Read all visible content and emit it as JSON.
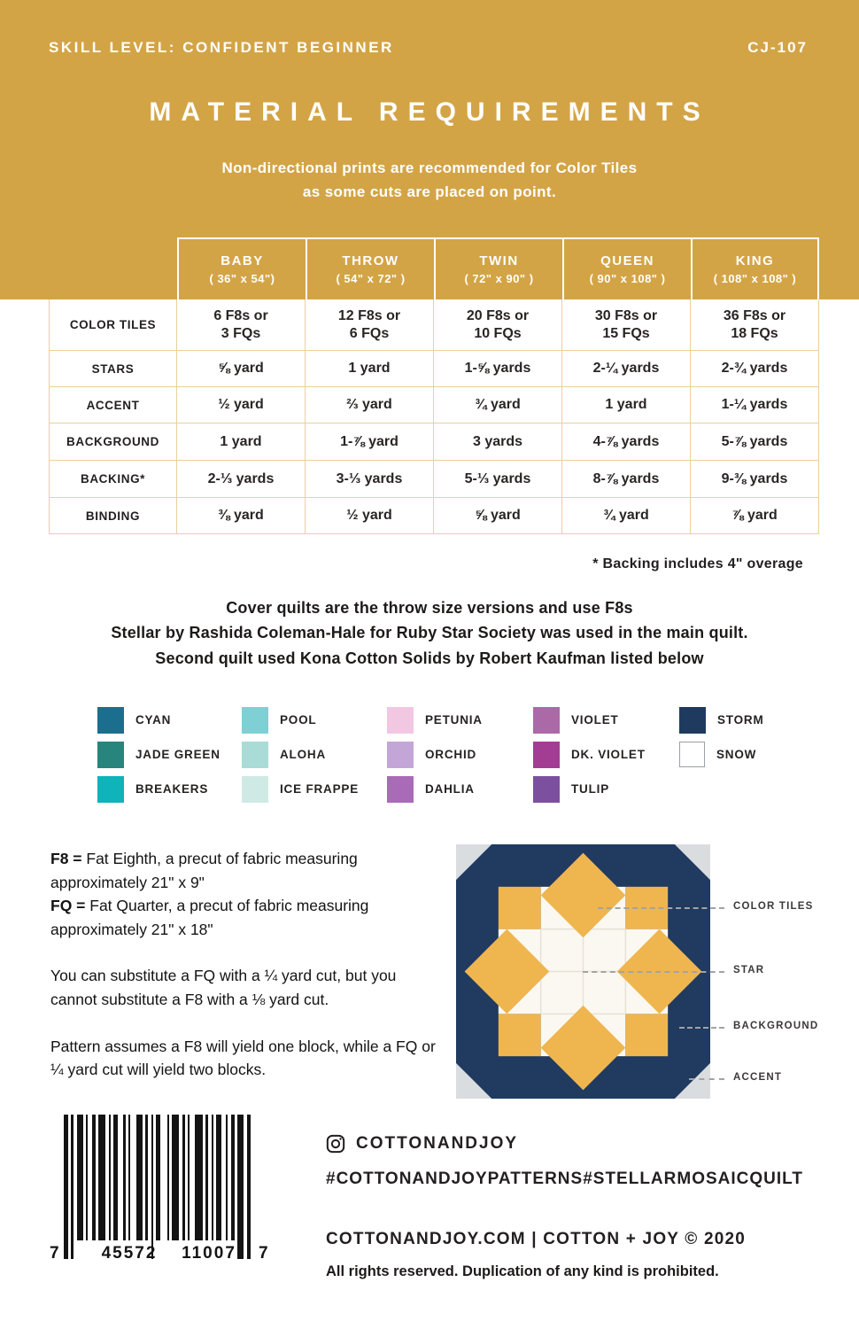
{
  "header": {
    "skill_level": "SKILL LEVEL: CONFIDENT BEGINNER",
    "pattern_number": "CJ-107",
    "title": "MATERIAL REQUIREMENTS",
    "subtitle_line1": "Non-directional prints are recommended for Color Tiles",
    "subtitle_line2": "as some cuts are placed on point.",
    "band_color": "#d3a446"
  },
  "table": {
    "columns": [
      {
        "name": "BABY",
        "size": "( 36\" x 54\")"
      },
      {
        "name": "THROW",
        "size": "( 54\" x 72\" )"
      },
      {
        "name": "TWIN",
        "size": "( 72\" x 90\" )"
      },
      {
        "name": "QUEEN",
        "size": "( 90\" x 108\" )"
      },
      {
        "name": "KING",
        "size": "( 108\" x 108\" )"
      }
    ],
    "rows": [
      {
        "label": "COLOR TILES",
        "values": [
          "6 F8s or\n3 FQs",
          "12 F8s or\n6 FQs",
          "20 F8s or\n10 FQs",
          "30 F8s or\n15 FQs",
          "36 F8s or\n18 FQs"
        ]
      },
      {
        "label": "STARS",
        "values": [
          "⅝ yard",
          "1 yard",
          "1-⅝ yards",
          "2-¼ yards",
          "2-¾ yards"
        ]
      },
      {
        "label": "ACCENT",
        "values": [
          "½ yard",
          "⅔ yard",
          "¾ yard",
          "1 yard",
          "1-¼ yards"
        ]
      },
      {
        "label": "BACKGROUND",
        "values": [
          "1 yard",
          "1-⅞ yard",
          "3 yards",
          "4-⅞ yards",
          "5-⅞ yards"
        ]
      },
      {
        "label": "BACKING*",
        "values": [
          "2-⅓ yards",
          "3-⅓ yards",
          "5-⅓ yards",
          "8-⅞ yards",
          "9-⅜ yards"
        ]
      },
      {
        "label": "BINDING",
        "values": [
          "⅜ yard",
          "½ yard",
          "⅝ yard",
          "¾ yard",
          "⅞ yard"
        ]
      }
    ],
    "footnote": "* Backing includes 4\" overage"
  },
  "intro": {
    "line1": "Cover quilts are the throw size versions and use F8s",
    "line2": "Stellar by Rashida Coleman-Hale for Ruby Star Society was used in the main quilt.",
    "line3": "Second quilt used Kona Cotton Solids by Robert Kaufman listed below"
  },
  "legend": {
    "columns": [
      [
        {
          "name": "CYAN",
          "color": "#1b6e8e"
        },
        {
          "name": "JADE GREEN",
          "color": "#27857d"
        },
        {
          "name": "BREAKERS",
          "color": "#0fb3ba"
        }
      ],
      [
        {
          "name": "POOL",
          "color": "#7ed0d4"
        },
        {
          "name": "ALOHA",
          "color": "#a9dcd6"
        },
        {
          "name": "ICE FRAPPE",
          "color": "#cfeae4"
        }
      ],
      [
        {
          "name": "PETUNIA",
          "color": "#f2c7e1"
        },
        {
          "name": "ORCHID",
          "color": "#c3a6d7"
        },
        {
          "name": "DAHLIA",
          "color": "#a96ab7"
        }
      ],
      [
        {
          "name": "VIOLET",
          "color": "#ac69a8"
        },
        {
          "name": "DK. VIOLET",
          "color": "#a23d93"
        },
        {
          "name": "TULIP",
          "color": "#7c509f"
        }
      ],
      [
        {
          "name": "STORM",
          "color": "#1e3a5f"
        },
        {
          "name": "SNOW",
          "color": "#ffffff"
        }
      ]
    ]
  },
  "notes": {
    "def1_term": "F8 =",
    "def1_rest": " Fat Eighth, a precut of fabric measuring approximately 21\" x 9\"",
    "def2_term": "FQ =",
    "def2_rest": " Fat Quarter, a precut of fabric measuring approximately 21\" x 18\"",
    "para1": "You can substitute a FQ with a ¼ yard cut, but you cannot substitute a F8 with a ⅛ yard cut.",
    "para2": "Pattern assumes a F8 will yield one block, while a FQ or ¼ yard cut will yield two blocks."
  },
  "diagram": {
    "labels": {
      "color_tiles": "COLOR TILES",
      "star": "STAR",
      "background": "BACKGROUND",
      "accent": "ACCENT"
    },
    "colors": {
      "accent": "#d9dde0",
      "background": "#203a60",
      "tiles": "#efb54f",
      "star": "#faf8f1"
    }
  },
  "barcode": {
    "digit_left": "7",
    "digits_group1": "45572",
    "digits_group2": "11007",
    "digit_right": "7",
    "bars": [
      {
        "w": 5,
        "g": 3,
        "t": 1
      },
      {
        "w": 3,
        "g": 4,
        "t": 1
      },
      {
        "w": 7,
        "g": 3
      },
      {
        "w": 2,
        "g": 5
      },
      {
        "w": 4,
        "g": 3
      },
      {
        "w": 8,
        "g": 4
      },
      {
        "w": 2,
        "g": 3
      },
      {
        "w": 5,
        "g": 6
      },
      {
        "w": 3,
        "g": 3
      },
      {
        "w": 2,
        "g": 7
      },
      {
        "w": 7,
        "g": 3
      },
      {
        "w": 3,
        "g": 4
      },
      {
        "w": 2,
        "g": 3,
        "t": 1
      },
      {
        "w": 5,
        "g": 8
      },
      {
        "w": 2,
        "g": 3
      },
      {
        "w": 8,
        "g": 4
      },
      {
        "w": 3,
        "g": 3
      },
      {
        "w": 2,
        "g": 6
      },
      {
        "w": 9,
        "g": 3
      },
      {
        "w": 3,
        "g": 4
      },
      {
        "w": 2,
        "g": 3
      },
      {
        "w": 6,
        "g": 5
      },
      {
        "w": 2,
        "g": 4
      },
      {
        "w": 4,
        "g": 3
      },
      {
        "w": 7,
        "g": 4,
        "t": 1
      },
      {
        "w": 4,
        "g": 0,
        "t": 1
      }
    ]
  },
  "footer": {
    "instagram_handle": "COTTONANDJOY",
    "hashtag1": "#COTTONANDJOYPATTERNS",
    "hashtag2": "#STELLARMOSAICQUILT",
    "website_line": "COTTONANDJOY.COM  |  COTTON + JOY © 2020",
    "rights": "All rights reserved. Duplication of any kind is prohibited."
  }
}
